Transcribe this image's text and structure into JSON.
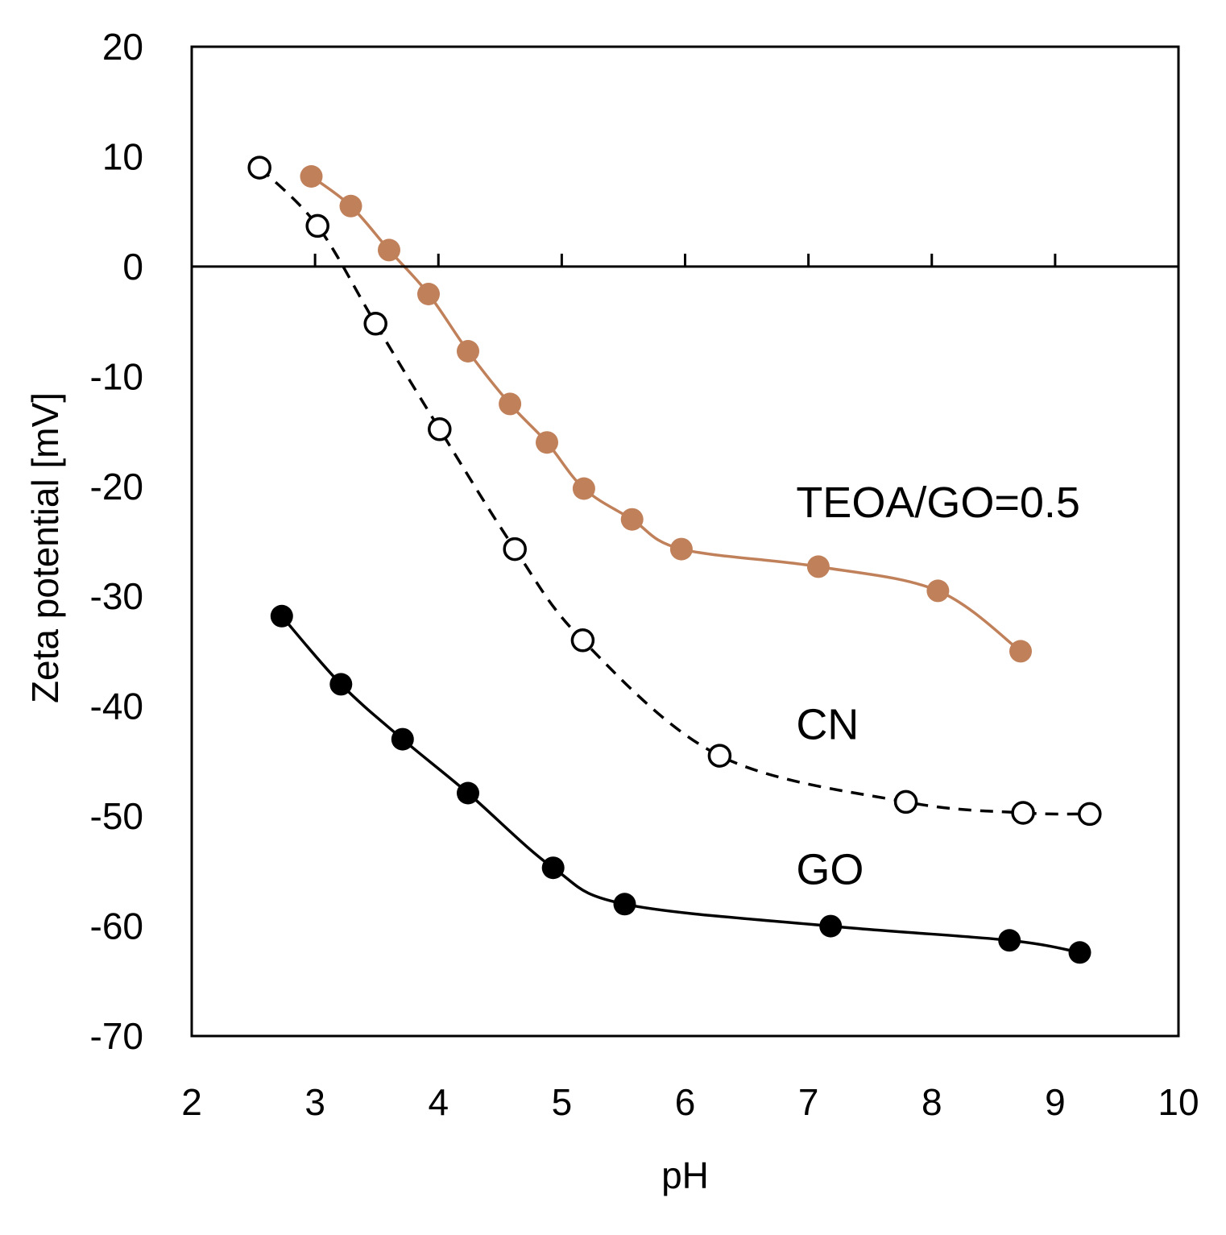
{
  "chart_data": {
    "type": "scatter",
    "title": "",
    "xlabel": "pH",
    "ylabel": "Zeta potential [mV]",
    "xlim": [
      2,
      10
    ],
    "ylim": [
      -70,
      20
    ],
    "xticks": [
      2,
      3,
      4,
      5,
      6,
      7,
      8,
      9,
      10
    ],
    "yticks": [
      20,
      10,
      0,
      -10,
      -20,
      -30,
      -40,
      -50,
      -60,
      -70
    ],
    "grid": false,
    "legend": "none",
    "series": [
      {
        "name": "TEOA/GO=0.5",
        "color": "#c0805a",
        "marker": "filled-circle",
        "line": "solid",
        "x": [
          2.97,
          3.29,
          3.6,
          3.92,
          4.24,
          4.58,
          4.88,
          5.18,
          5.57,
          5.97,
          7.08,
          8.05,
          8.72
        ],
        "y": [
          8.2,
          5.5,
          1.5,
          -2.5,
          -7.7,
          -12.5,
          -16.0,
          -20.2,
          -23.0,
          -25.7,
          -27.3,
          -29.5,
          -35.0
        ]
      },
      {
        "name": "CN",
        "color": "#000000",
        "marker": "open-circle",
        "line": "dashed",
        "x": [
          2.55,
          3.02,
          3.49,
          4.01,
          4.62,
          5.17,
          6.28,
          7.79,
          8.74,
          9.28
        ],
        "y": [
          9.0,
          3.7,
          -5.2,
          -14.8,
          -25.7,
          -34.0,
          -44.5,
          -48.7,
          -49.7,
          -49.8
        ]
      },
      {
        "name": "GO",
        "color": "#000000",
        "marker": "filled-circle",
        "line": "solid",
        "x": [
          2.73,
          3.21,
          3.71,
          4.24,
          4.93,
          5.51,
          7.18,
          8.63,
          9.2
        ],
        "y": [
          -31.8,
          -38.0,
          -43.0,
          -47.9,
          -54.7,
          -58.0,
          -60.0,
          -61.3,
          -62.4
        ]
      }
    ],
    "annotations": [
      {
        "text": "TEOA/GO=0.5",
        "x": 6.9,
        "y": -22.8
      },
      {
        "text": "CN",
        "x": 6.9,
        "y": -43.0
      },
      {
        "text": "GO",
        "x": 6.9,
        "y": -56.2
      }
    ]
  }
}
